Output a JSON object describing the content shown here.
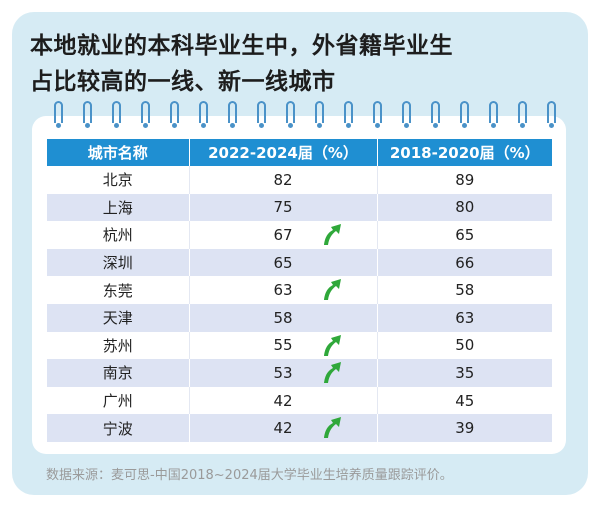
{
  "title": {
    "line1": "本地就业的本科毕业生中，外省籍毕业生",
    "line2": "占比较高的一线、新一线城市"
  },
  "table": {
    "headers": [
      "城市名称",
      "2022-2024届（%）",
      "2018-2020届（%）"
    ],
    "rows": [
      {
        "city": "北京",
        "v2022_2024": "82",
        "v2018_2020": "89",
        "up": false
      },
      {
        "city": "上海",
        "v2022_2024": "75",
        "v2018_2020": "80",
        "up": false
      },
      {
        "city": "杭州",
        "v2022_2024": "67",
        "v2018_2020": "65",
        "up": true
      },
      {
        "city": "深圳",
        "v2022_2024": "65",
        "v2018_2020": "66",
        "up": false
      },
      {
        "city": "东莞",
        "v2022_2024": "63",
        "v2018_2020": "58",
        "up": true
      },
      {
        "city": "天津",
        "v2022_2024": "58",
        "v2018_2020": "63",
        "up": false
      },
      {
        "city": "苏州",
        "v2022_2024": "55",
        "v2018_2020": "50",
        "up": true
      },
      {
        "city": "南京",
        "v2022_2024": "53",
        "v2018_2020": "35",
        "up": true
      },
      {
        "city": "广州",
        "v2022_2024": "42",
        "v2018_2020": "45",
        "up": false
      },
      {
        "city": "宁波",
        "v2022_2024": "42",
        "v2018_2020": "39",
        "up": true
      }
    ]
  },
  "source": "数据来源：麦可思-中国2018~2024届大学毕业生培养质量跟踪评价。",
  "colors": {
    "background": "#d6ebf4",
    "header": "#1f8fd2",
    "stripe": "#dde3f3",
    "ring": "#4a92c8",
    "arrow": "#2fa83a"
  },
  "icons": {
    "up_arrow": "up-arrow-icon",
    "binder_ring": "binder-ring-icon"
  }
}
